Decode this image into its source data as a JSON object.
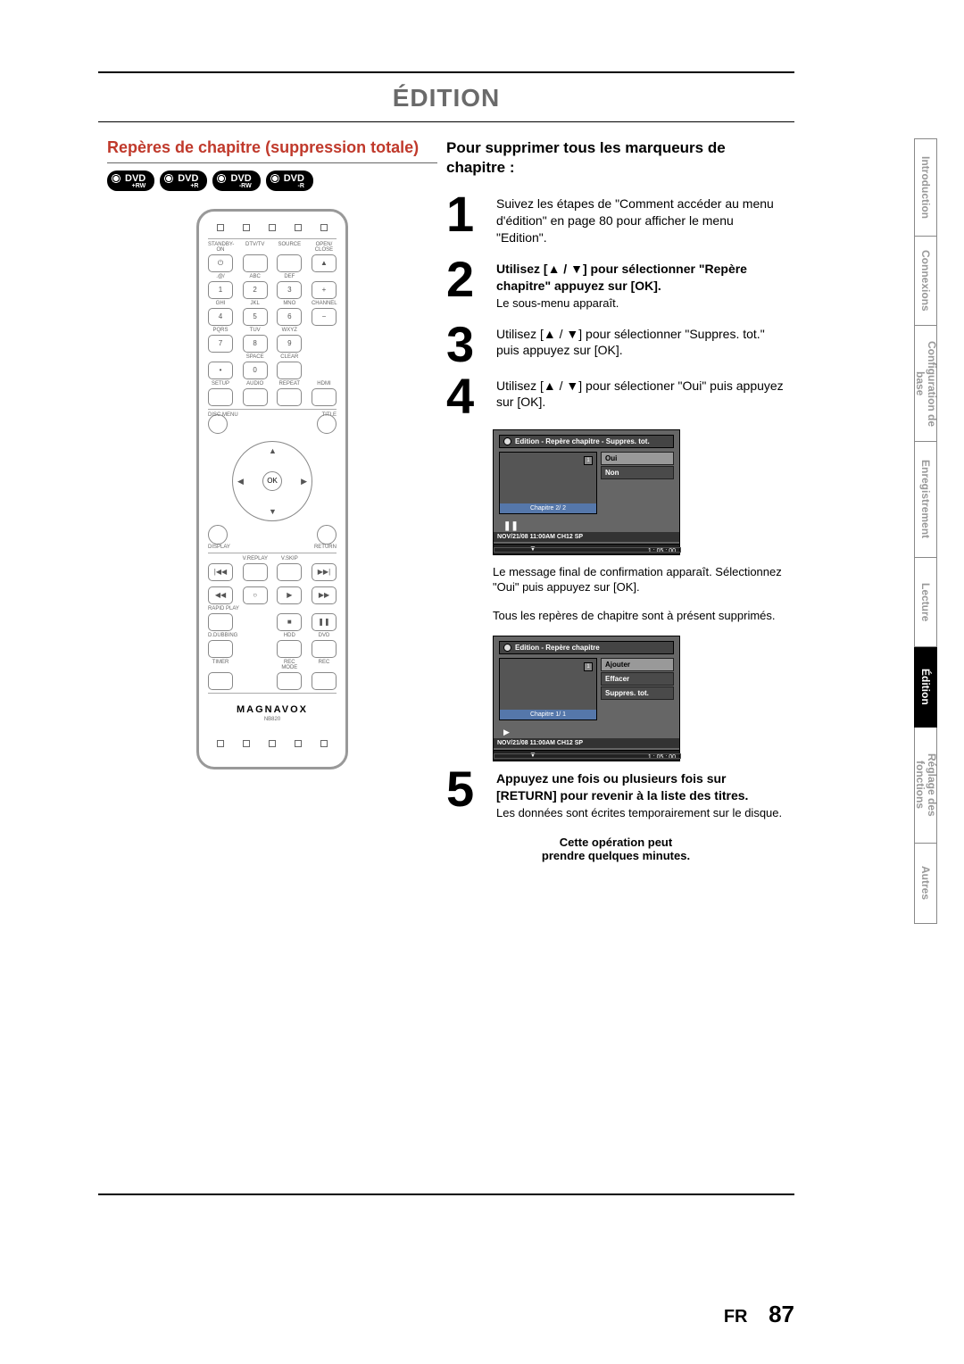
{
  "page": {
    "title": "ÉDITION",
    "lang": "FR",
    "number": "87"
  },
  "section_heading": "Repères de chapitre (suppression totale)",
  "badges": [
    {
      "main": "DVD",
      "sub": "+RW"
    },
    {
      "main": "DVD",
      "sub": "+R"
    },
    {
      "main": "DVD",
      "sub": "-RW"
    },
    {
      "main": "DVD",
      "sub": "-R"
    }
  ],
  "remote": {
    "row1_labels": [
      "STANDBY-ON",
      "DTV/TV",
      "SOURCE",
      "OPEN/\nCLOSE"
    ],
    "numpad_labels_top": [
      ".@/",
      "ABC",
      "DEF"
    ],
    "numpad_labels_mid": [
      "GHI",
      "JKL",
      "MNO"
    ],
    "numpad_labels_bot": [
      "PQRS",
      "TUV",
      "WXYZ"
    ],
    "row_after_9": [
      "SPACE",
      "CLEAR"
    ],
    "row_setup": [
      "SETUP",
      "AUDIO",
      "REPEAT",
      "HDMI"
    ],
    "disc_menu": "DISC MENU",
    "title": "TITLE",
    "ok": "OK",
    "display": "DISPLAY",
    "return": "RETURN",
    "vreplay": "V.REPLAY",
    "vskip": "V.SKIP",
    "rapid": "RAPID PLAY",
    "dubbing": "D.DUBBING",
    "hdd": "HDD",
    "dvd": "DVD",
    "timer": "TIMER",
    "recmode": "REC MODE",
    "rec": "REC",
    "brand": "MAGNAVOX",
    "model": "NB820",
    "channel": "CHANNEL"
  },
  "right_heading": "Pour supprimer tous les marqueurs de chapitre :",
  "steps": {
    "s1": "Suivez les étapes de \"Comment accéder au menu d'édition\" en page 80 pour afficher le menu \"Edition\".",
    "s2_bold": "Utilisez [▲ / ▼] pour sélectionner \"Repère chapitre\" appuyez sur [OK].",
    "s2_sub": "Le sous-menu apparaît.",
    "s3": "Utilisez [▲ / ▼] pour sélectionner \"Suppres. tot.\" puis appuyez sur [OK].",
    "s4": "Utilisez [▲ / ▼] pour sélectioner \"Oui\" puis appuyez sur [OK].",
    "s5_bold": "Appuyez une fois ou plusieurs fois sur [RETURN] pour revenir à la liste des titres.",
    "s5_sub": "Les données sont écrites temporairement sur le disque."
  },
  "tv1": {
    "title": "Edition - Repère chapitre - Suppres. tot.",
    "chapter": "Chapitre    2/  2",
    "opt1": "Oui",
    "opt2": "Non",
    "status": "NOV/21/08 11:00AM CH12 SP",
    "time": "1 : 05 : 00"
  },
  "para1": "Le message final de confirmation apparaît. Sélectionnez \"Oui\" puis appuyez sur [OK].",
  "para2": "Tous les repères de chapitre sont à présent supprimés.",
  "tv2": {
    "title": "Edition - Repère chapitre",
    "chapter": "Chapitre    1/  1",
    "opt1": "Ajouter",
    "opt2": "Effacer",
    "opt3": "Suppres. tot.",
    "status": "NOV/21/08 11:00AM CH12 SP",
    "time": "1 : 05 : 00"
  },
  "warning": "Cette opération peut\nprendre quelques minutes.",
  "tabs": [
    {
      "label": "Introduction",
      "active": false
    },
    {
      "label": "Connexions",
      "active": false
    },
    {
      "label": "Configuration de\nbase",
      "active": false
    },
    {
      "label": "Enregistrement",
      "active": false
    },
    {
      "label": "Lecture",
      "active": false
    },
    {
      "label": "Édition",
      "active": true
    },
    {
      "label": "Réglage des\nfonctions",
      "active": false
    },
    {
      "label": "Autres",
      "active": false
    }
  ],
  "tab_heights": [
    110,
    100,
    130,
    130,
    100,
    90,
    130,
    90
  ]
}
